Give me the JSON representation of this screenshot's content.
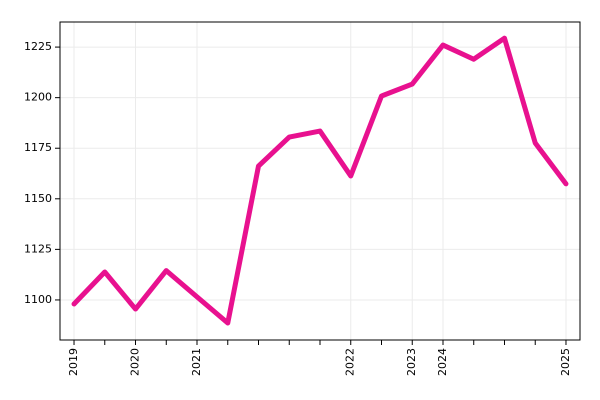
{
  "chart_data": {
    "type": "line",
    "categories": [
      "2019",
      null,
      "2020",
      null,
      "2021",
      null,
      null,
      null,
      null,
      "2022",
      null,
      "2023",
      "2024",
      null,
      null,
      null,
      "2025"
    ],
    "series": [
      {
        "color": "#e8118f",
        "values": [
          1098,
          1113.8,
          1095.5,
          1114.5,
          1101.5,
          1088.6,
          1166.2,
          1180.5,
          1183.5,
          1161.3,
          1200.8,
          1206.7,
          1226,
          1219,
          1229.4,
          1177.6,
          1157.4
        ]
      }
    ],
    "ylim": [
      1080.2,
      1237.4
    ],
    "yticks": [
      1100,
      1125,
      1150,
      1175,
      1200,
      1225
    ],
    "grid": true
  }
}
